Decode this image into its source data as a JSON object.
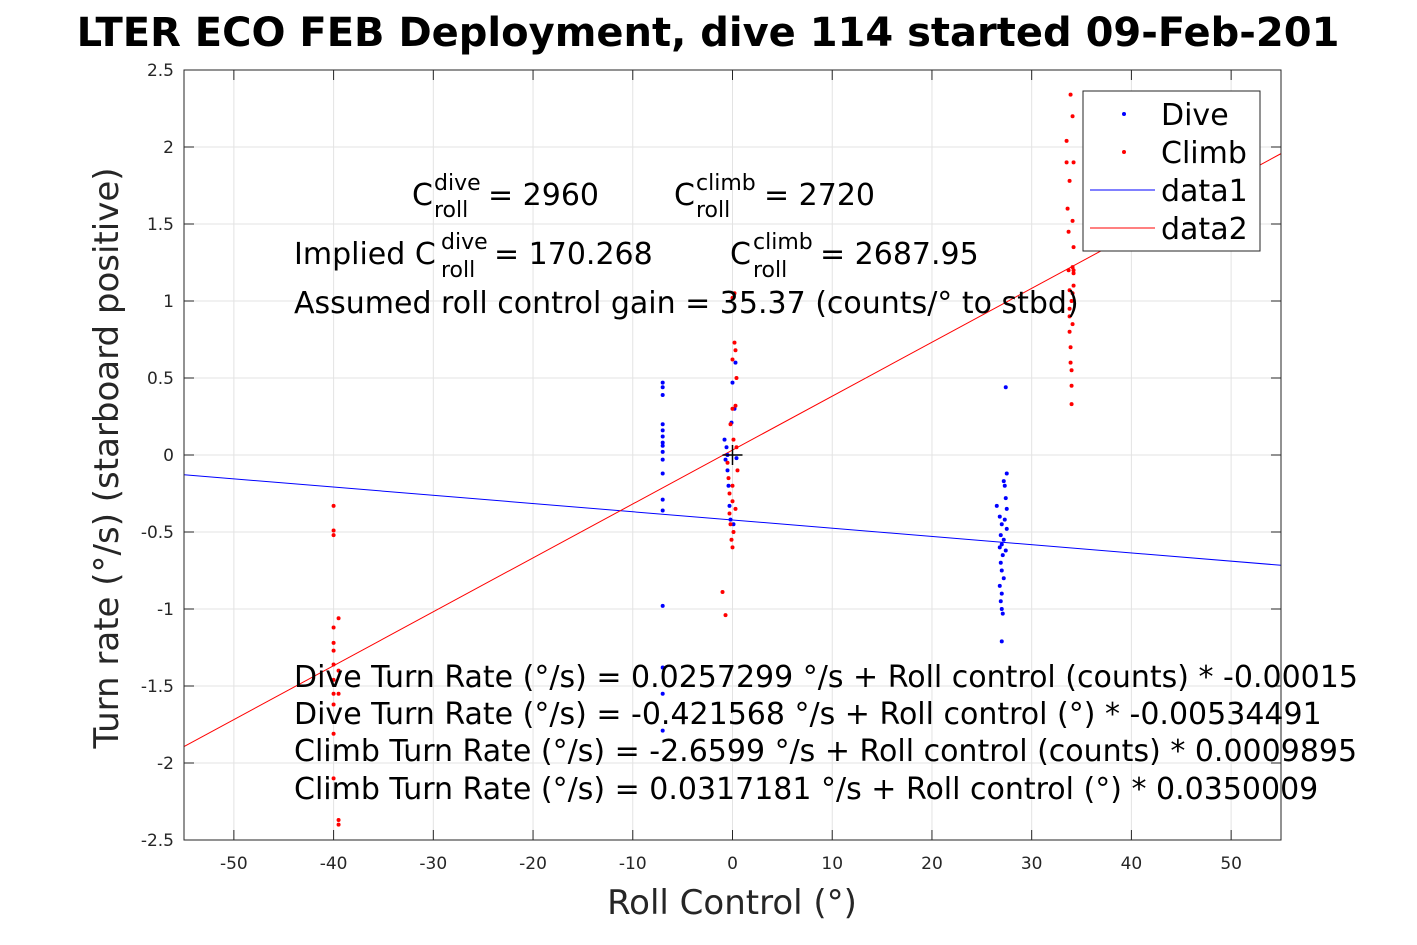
{
  "chart_data": {
    "type": "scatter",
    "title": "LTER ECO FEB Deployment, dive 114 started 09-Feb-201",
    "xlabel": "Roll Control (°)",
    "ylabel": "Turn rate (°/s) (starboard positive)",
    "xlim": [
      -55,
      55
    ],
    "ylim": [
      -2.5,
      2.5
    ],
    "xticks": [
      -50,
      -40,
      -30,
      -20,
      -10,
      0,
      10,
      20,
      30,
      40,
      50
    ],
    "yticks": [
      -2.5,
      -2,
      -1.5,
      -1,
      -0.5,
      0,
      0.5,
      1,
      1.5,
      2,
      2.5
    ],
    "grid": true,
    "legend_position": "top-right",
    "legend": [
      {
        "label": "Dive",
        "kind": "marker",
        "color": "#0000ff"
      },
      {
        "label": "Climb",
        "kind": "marker",
        "color": "#ff0000"
      },
      {
        "label": "data1",
        "kind": "line",
        "color": "#0000ff"
      },
      {
        "label": "data2",
        "kind": "line",
        "color": "#ff0000"
      }
    ],
    "series": [
      {
        "name": "Dive",
        "color": "#0000ff",
        "points": [
          [
            -7,
            0.47
          ],
          [
            -7,
            0.44
          ],
          [
            -7,
            0.39
          ],
          [
            -7,
            0.2
          ],
          [
            -7,
            0.16
          ],
          [
            -7,
            0.12
          ],
          [
            -7,
            0.08
          ],
          [
            -7,
            0.06
          ],
          [
            -7,
            0.02
          ],
          [
            -7,
            -0.03
          ],
          [
            -7,
            -0.12
          ],
          [
            -7,
            -0.29
          ],
          [
            -7,
            -0.36
          ],
          [
            -7,
            -0.98
          ],
          [
            -7,
            -1.38
          ],
          [
            -7,
            -1.55
          ],
          [
            -7,
            -1.79
          ],
          [
            -0.8,
            0.1
          ],
          [
            -0.6,
            0.05
          ],
          [
            -0.5,
            0
          ],
          [
            -0.7,
            -0.03
          ],
          [
            -0.5,
            -0.1
          ],
          [
            -0.4,
            -0.2
          ],
          [
            -0.3,
            -0.33
          ],
          [
            -0.2,
            -0.42
          ],
          [
            0,
            0.47
          ],
          [
            0.3,
            0.6
          ],
          [
            0.2,
            0.3
          ],
          [
            0.1,
            -0.45
          ],
          [
            -0.1,
            0.21
          ],
          [
            0.4,
            -0.02
          ],
          [
            26.5,
            -0.33
          ],
          [
            26.8,
            -0.4
          ],
          [
            27,
            -0.45
          ],
          [
            26.9,
            -0.52
          ],
          [
            27,
            -0.58
          ],
          [
            26.8,
            -0.6
          ],
          [
            27.1,
            -0.65
          ],
          [
            26.9,
            -0.7
          ],
          [
            27,
            -0.75
          ],
          [
            27.2,
            -0.8
          ],
          [
            26.8,
            -0.85
          ],
          [
            27,
            -0.9
          ],
          [
            26.9,
            -0.95
          ],
          [
            27,
            -1.0
          ],
          [
            27.1,
            -1.03
          ],
          [
            27,
            -1.21
          ],
          [
            27.4,
            0.44
          ],
          [
            27.2,
            -0.17
          ],
          [
            27.3,
            -0.2
          ],
          [
            27.5,
            -0.12
          ],
          [
            27.4,
            -0.28
          ],
          [
            27.5,
            -0.35
          ],
          [
            27.3,
            -0.42
          ],
          [
            27.5,
            -0.48
          ],
          [
            27.2,
            -0.55
          ],
          [
            27.4,
            -0.62
          ]
        ]
      },
      {
        "name": "Climb",
        "color": "#ff0000",
        "points": [
          [
            -40,
            -0.33
          ],
          [
            -40,
            -0.49
          ],
          [
            -40,
            -0.52
          ],
          [
            -40,
            -1.12
          ],
          [
            -40,
            -1.22
          ],
          [
            -40,
            -1.27
          ],
          [
            -40,
            -1.36
          ],
          [
            -40,
            -1.46
          ],
          [
            -40,
            -1.55
          ],
          [
            -40,
            -1.62
          ],
          [
            -40,
            -1.81
          ],
          [
            -40,
            -2.1
          ],
          [
            -39.5,
            -1.06
          ],
          [
            -39.5,
            -1.4
          ],
          [
            -39.5,
            -1.55
          ],
          [
            -39.5,
            -2.37
          ],
          [
            -39.5,
            -2.4
          ],
          [
            -1,
            -0.89
          ],
          [
            -0.7,
            -1.04
          ],
          [
            -0.5,
            -0.05
          ],
          [
            -0.4,
            -0.15
          ],
          [
            -0.3,
            -0.25
          ],
          [
            -0.3,
            -0.38
          ],
          [
            -0.2,
            -0.45
          ],
          [
            -0.1,
            -0.55
          ],
          [
            0,
            -0.6
          ],
          [
            0,
            -0.3
          ],
          [
            0,
            -0.2
          ],
          [
            0,
            0.3
          ],
          [
            0,
            0.62
          ],
          [
            0,
            1.02
          ],
          [
            0.2,
            1.05
          ],
          [
            0.2,
            0.73
          ],
          [
            0.3,
            0.68
          ],
          [
            0.4,
            0.5
          ],
          [
            0.3,
            0.32
          ],
          [
            0.5,
            -0.1
          ],
          [
            0.1,
            0.1
          ],
          [
            0.4,
            0.05
          ],
          [
            -0.2,
            0.2
          ],
          [
            0.3,
            -0.35
          ],
          [
            0.1,
            -0.5
          ],
          [
            33.5,
            2.04
          ],
          [
            33.5,
            1.9
          ],
          [
            33.6,
            1.6
          ],
          [
            33.7,
            1.45
          ],
          [
            33.7,
            1.2
          ],
          [
            33.8,
            1.07
          ],
          [
            33.8,
            0.95
          ],
          [
            33.8,
            0.9
          ],
          [
            33.8,
            0.8
          ],
          [
            33.9,
            0.7
          ],
          [
            33.9,
            0.6
          ],
          [
            34,
            0.55
          ],
          [
            34,
            0.45
          ],
          [
            34,
            0.33
          ],
          [
            34,
            1.0
          ],
          [
            34.1,
            1.05
          ],
          [
            34.2,
            1.18
          ],
          [
            34.2,
            1.2
          ],
          [
            33.9,
            2.34
          ],
          [
            34.1,
            2.2
          ],
          [
            34.2,
            1.9
          ],
          [
            33.8,
            1.78
          ],
          [
            34.1,
            1.52
          ],
          [
            34.2,
            1.35
          ],
          [
            34.1,
            1.22
          ],
          [
            34.2,
            1.1
          ],
          [
            34.1,
            0.85
          ]
        ]
      },
      {
        "name": "data1",
        "kind": "line",
        "color": "#0000ff",
        "x": [
          -55,
          55
        ],
        "y": [
          -0.128,
          -0.716
        ]
      },
      {
        "name": "data2",
        "kind": "line",
        "color": "#ff0000",
        "x": [
          -55,
          55
        ],
        "y": [
          -1.893,
          1.957
        ]
      }
    ],
    "crosshair": {
      "x": 0,
      "y": 0,
      "color": "#000000"
    },
    "annotations": {
      "c_dive_prefix": "C",
      "c_dive_sup": "dive",
      "c_dive_sub": "roll",
      "c_dive_value": " = 2960",
      "c_climb_prefix": "C",
      "c_climb_sup": "climb",
      "c_climb_sub": "roll",
      "c_climb_value": " = 2720",
      "implied_prefix": "Implied C",
      "implied_dive_sup": "dive",
      "implied_dive_sub": "roll",
      "implied_dive_value": " = 170.268",
      "implied_climb_prefix": "C",
      "implied_climb_sup": "climb",
      "implied_climb_sub": "roll",
      "implied_climb_value": " = 2687.95",
      "gain": "Assumed roll control gain = 35.37 (counts/° to stbd)",
      "eq1": "Dive Turn Rate (°/s) = 0.0257299 °/s + Roll control (counts) * -0.00015",
      "eq2": "Dive Turn Rate (°/s) = -0.421568 °/s + Roll control (°) * -0.00534491",
      "eq3": "Climb Turn Rate (°/s) = -2.6599 °/s + Roll control (counts) * 0.0009895",
      "eq4": "Climb Turn Rate (°/s) = 0.0317181 °/s + Roll control (°) * 0.0350009"
    }
  }
}
